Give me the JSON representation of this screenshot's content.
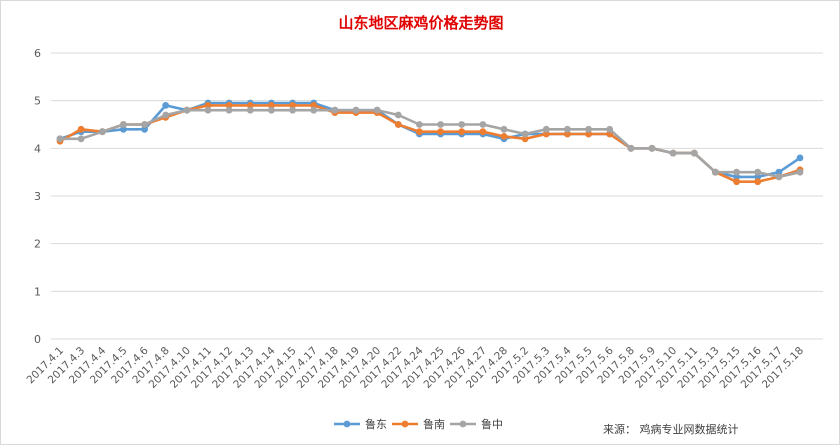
{
  "chart_data": {
    "type": "line",
    "title": "山东地区麻鸡价格走势图",
    "ylim": [
      0,
      6
    ],
    "yticks": [
      0,
      1,
      2,
      3,
      4,
      5,
      6
    ],
    "grid": "horizontal",
    "legend_position": "bottom",
    "categories": [
      "2017.4.1",
      "2017.4.3",
      "2017.4.4",
      "2017.4.5",
      "2017.4.6",
      "2017.4.8",
      "2017.4.10",
      "2017.4.11",
      "2017.4.12",
      "2017.4.13",
      "2017.4.14",
      "2017.4.15",
      "2017.4.17",
      "2017.4.18",
      "2017.4.19",
      "2017.4.20",
      "2017.4.22",
      "2017.4.24",
      "2017.4.25",
      "2017.4.26",
      "2017.4.27",
      "2017.4.28",
      "2017.5.2",
      "2017.5.3",
      "2017.5.4",
      "2017.5.5",
      "2017.5.6",
      "2017.5.8",
      "2017.5.9",
      "2017.5.10",
      "2017.5.11",
      "2017.5.13",
      "2017.5.15",
      "2017.5.16",
      "2017.5.17",
      "2017.5.18"
    ],
    "series": [
      {
        "name": "鲁东",
        "color": "#5b9bd5",
        "values": [
          4.2,
          4.35,
          4.35,
          4.4,
          4.4,
          4.9,
          4.8,
          4.95,
          4.95,
          4.95,
          4.95,
          4.95,
          4.95,
          4.8,
          4.8,
          4.8,
          4.5,
          4.3,
          4.3,
          4.3,
          4.3,
          4.2,
          4.3,
          4.3,
          4.3,
          4.3,
          4.3,
          4.0,
          4.0,
          3.9,
          3.9,
          3.5,
          3.4,
          3.4,
          3.5,
          3.8
        ]
      },
      {
        "name": "鲁南",
        "color": "#ed7d31",
        "values": [
          4.15,
          4.4,
          4.35,
          4.5,
          4.5,
          4.65,
          4.8,
          4.9,
          4.9,
          4.9,
          4.9,
          4.9,
          4.9,
          4.75,
          4.75,
          4.75,
          4.5,
          4.35,
          4.35,
          4.35,
          4.35,
          4.25,
          4.2,
          4.3,
          4.3,
          4.3,
          4.3,
          4.0,
          4.0,
          3.9,
          3.9,
          3.5,
          3.3,
          3.3,
          3.4,
          3.55
        ]
      },
      {
        "name": "鲁中",
        "color": "#a5a5a5",
        "values": [
          4.2,
          4.2,
          4.35,
          4.5,
          4.5,
          4.7,
          4.8,
          4.8,
          4.8,
          4.8,
          4.8,
          4.8,
          4.8,
          4.8,
          4.8,
          4.8,
          4.7,
          4.5,
          4.5,
          4.5,
          4.5,
          4.4,
          4.3,
          4.4,
          4.4,
          4.4,
          4.4,
          4.0,
          4.0,
          3.9,
          3.9,
          3.5,
          3.5,
          3.5,
          3.4,
          3.5
        ]
      }
    ]
  },
  "source_note": "来源：  鸡病专业网数据统计"
}
